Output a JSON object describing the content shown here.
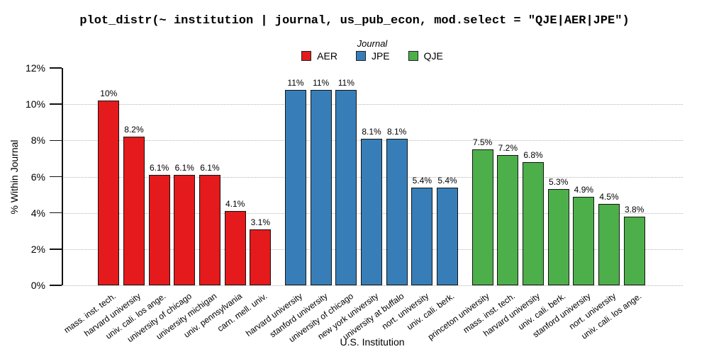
{
  "title": "plot_distr(~ institution | journal, us_pub_econ, mod.select = \"QJE|AER|JPE\")",
  "legend": {
    "title": "Journal",
    "entries": [
      {
        "label": "AER",
        "color": "#E41A1C"
      },
      {
        "label": "JPE",
        "color": "#377EB8"
      },
      {
        "label": "QJE",
        "color": "#4DAF4A"
      }
    ]
  },
  "chart_data": {
    "type": "bar",
    "title": "plot_distr(~ institution | journal, us_pub_econ, mod.select = \"QJE|AER|JPE\")",
    "xlabel": "U.S. Institution",
    "ylabel": "% Within Journal",
    "ylim": [
      0,
      12
    ],
    "yticks": [
      "0%",
      "2%",
      "4%",
      "6%",
      "8%",
      "10%",
      "12%"
    ],
    "grid": "horizontal-dotted",
    "legend_position": "top-center",
    "groups": [
      {
        "journal": "AER",
        "color": "#E41A1C",
        "bars": [
          {
            "institution": "mass. inst. tech.",
            "value": 10.2,
            "label": "10%"
          },
          {
            "institution": "harvard university",
            "value": 8.2,
            "label": "8.2%"
          },
          {
            "institution": "univ. cali. los ange.",
            "value": 6.1,
            "label": "6.1%"
          },
          {
            "institution": "university of chicago",
            "value": 6.1,
            "label": "6.1%"
          },
          {
            "institution": "university michigan",
            "value": 6.1,
            "label": "6.1%"
          },
          {
            "institution": "univ. pennsylvania",
            "value": 4.1,
            "label": "4.1%"
          },
          {
            "institution": "carn. mell. univ.",
            "value": 3.1,
            "label": "3.1%"
          }
        ]
      },
      {
        "journal": "JPE",
        "color": "#377EB8",
        "bars": [
          {
            "institution": "harvard university",
            "value": 10.8,
            "label": "11%"
          },
          {
            "institution": "stanford university",
            "value": 10.8,
            "label": "11%"
          },
          {
            "institution": "university of chicago",
            "value": 10.8,
            "label": "11%"
          },
          {
            "institution": "new york university",
            "value": 8.1,
            "label": "8.1%"
          },
          {
            "institution": "university at buffalo",
            "value": 8.1,
            "label": "8.1%"
          },
          {
            "institution": "nort. university",
            "value": 5.4,
            "label": "5.4%"
          },
          {
            "institution": "univ. cali. berk.",
            "value": 5.4,
            "label": "5.4%"
          }
        ]
      },
      {
        "journal": "QJE",
        "color": "#4DAF4A",
        "bars": [
          {
            "institution": "princeton university",
            "value": 7.5,
            "label": "7.5%"
          },
          {
            "institution": "mass. inst. tech.",
            "value": 7.2,
            "label": "7.2%"
          },
          {
            "institution": "harvard university",
            "value": 6.8,
            "label": "6.8%"
          },
          {
            "institution": "univ. cali. berk.",
            "value": 5.3,
            "label": "5.3%"
          },
          {
            "institution": "stanford university",
            "value": 4.9,
            "label": "4.9%"
          },
          {
            "institution": "nort. university",
            "value": 4.5,
            "label": "4.5%"
          },
          {
            "institution": "univ. cali. los ange.",
            "value": 3.8,
            "label": "3.8%"
          }
        ]
      }
    ]
  }
}
